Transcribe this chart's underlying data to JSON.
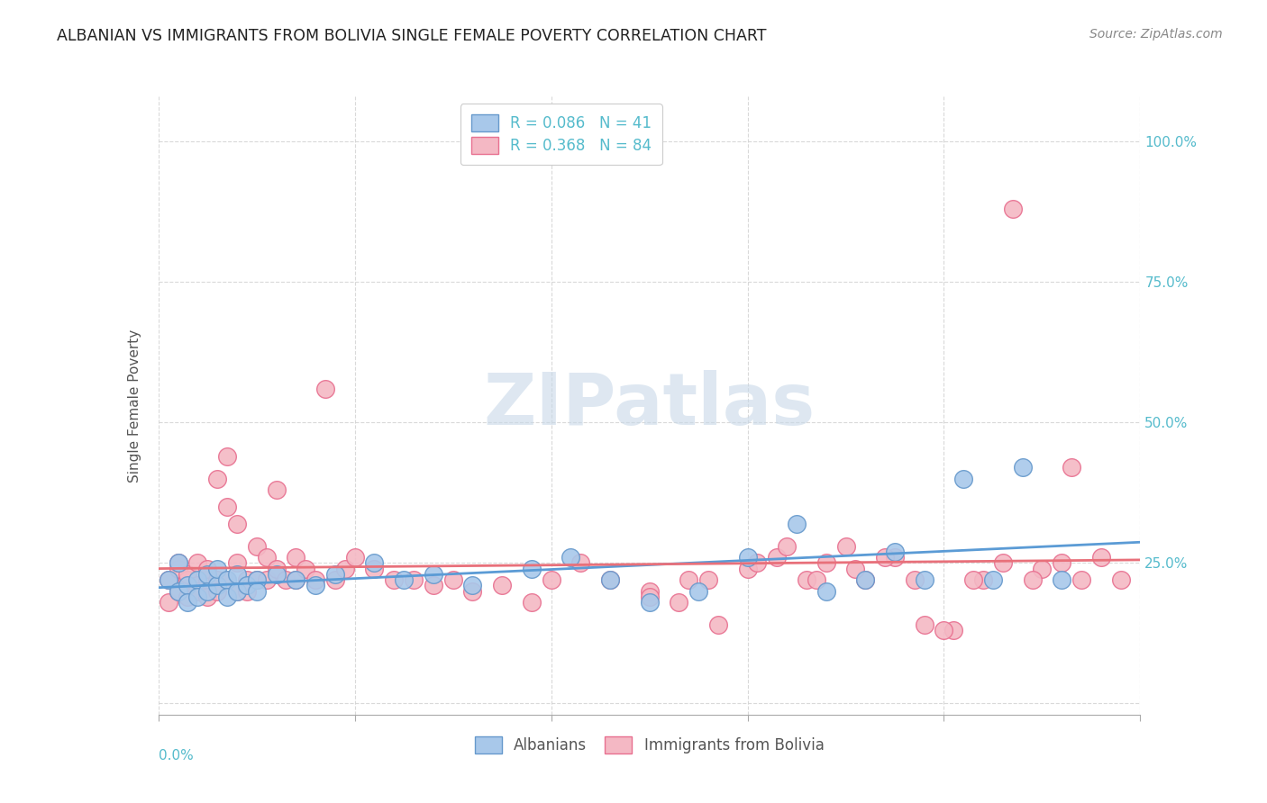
{
  "title": "ALBANIAN VS IMMIGRANTS FROM BOLIVIA SINGLE FEMALE POVERTY CORRELATION CHART",
  "source": "Source: ZipAtlas.com",
  "ylabel": "Single Female Poverty",
  "ytick_values": [
    0.0,
    0.25,
    0.5,
    0.75,
    1.0
  ],
  "ytick_labels": [
    "",
    "25.0%",
    "50.0%",
    "75.0%",
    "100.0%"
  ],
  "xlim": [
    0.0,
    0.1
  ],
  "ylim": [
    -0.02,
    1.08
  ],
  "legend_entries": [
    {
      "label": "R = 0.086   N = 41"
    },
    {
      "label": "R = 0.368   N = 84"
    }
  ],
  "legend_bottom": [
    "Albanians",
    "Immigrants from Bolivia"
  ],
  "albanians_x": [
    0.001,
    0.002,
    0.002,
    0.003,
    0.003,
    0.004,
    0.004,
    0.005,
    0.005,
    0.006,
    0.006,
    0.007,
    0.007,
    0.008,
    0.008,
    0.009,
    0.01,
    0.01,
    0.012,
    0.014,
    0.016,
    0.018,
    0.022,
    0.025,
    0.028,
    0.032,
    0.038,
    0.042,
    0.046,
    0.05,
    0.055,
    0.06,
    0.065,
    0.068,
    0.072,
    0.075,
    0.078,
    0.082,
    0.085,
    0.088,
    0.092
  ],
  "albanians_y": [
    0.22,
    0.2,
    0.25,
    0.21,
    0.18,
    0.22,
    0.19,
    0.23,
    0.2,
    0.21,
    0.24,
    0.22,
    0.19,
    0.23,
    0.2,
    0.21,
    0.22,
    0.2,
    0.23,
    0.22,
    0.21,
    0.23,
    0.25,
    0.22,
    0.23,
    0.21,
    0.24,
    0.26,
    0.22,
    0.18,
    0.2,
    0.26,
    0.32,
    0.2,
    0.22,
    0.27,
    0.22,
    0.4,
    0.22,
    0.42,
    0.22
  ],
  "bolivia_x": [
    0.001,
    0.001,
    0.002,
    0.002,
    0.002,
    0.003,
    0.003,
    0.003,
    0.004,
    0.004,
    0.004,
    0.005,
    0.005,
    0.005,
    0.006,
    0.006,
    0.006,
    0.007,
    0.007,
    0.007,
    0.008,
    0.008,
    0.008,
    0.009,
    0.009,
    0.01,
    0.01,
    0.011,
    0.011,
    0.012,
    0.012,
    0.013,
    0.014,
    0.014,
    0.015,
    0.016,
    0.017,
    0.018,
    0.019,
    0.02,
    0.022,
    0.024,
    0.026,
    0.028,
    0.03,
    0.032,
    0.035,
    0.038,
    0.04,
    0.043,
    0.046,
    0.05,
    0.053,
    0.056,
    0.06,
    0.063,
    0.066,
    0.068,
    0.07,
    0.072,
    0.075,
    0.078,
    0.081,
    0.084,
    0.087,
    0.09,
    0.092,
    0.094,
    0.096,
    0.098,
    0.05,
    0.054,
    0.057,
    0.061,
    0.064,
    0.067,
    0.071,
    0.074,
    0.077,
    0.08,
    0.083,
    0.086,
    0.089,
    0.093
  ],
  "bolivia_y": [
    0.22,
    0.18,
    0.24,
    0.2,
    0.25,
    0.22,
    0.19,
    0.23,
    0.21,
    0.25,
    0.2,
    0.22,
    0.19,
    0.24,
    0.22,
    0.4,
    0.2,
    0.35,
    0.44,
    0.22,
    0.32,
    0.2,
    0.25,
    0.22,
    0.2,
    0.22,
    0.28,
    0.26,
    0.22,
    0.38,
    0.24,
    0.22,
    0.22,
    0.26,
    0.24,
    0.22,
    0.56,
    0.22,
    0.24,
    0.26,
    0.24,
    0.22,
    0.22,
    0.21,
    0.22,
    0.2,
    0.21,
    0.18,
    0.22,
    0.25,
    0.22,
    0.2,
    0.18,
    0.22,
    0.24,
    0.26,
    0.22,
    0.25,
    0.28,
    0.22,
    0.26,
    0.14,
    0.13,
    0.22,
    0.88,
    0.24,
    0.25,
    0.22,
    0.26,
    0.22,
    0.19,
    0.22,
    0.14,
    0.25,
    0.28,
    0.22,
    0.24,
    0.26,
    0.22,
    0.13,
    0.22,
    0.25,
    0.22,
    0.42
  ],
  "albanian_line_color": "#5b9bd5",
  "bolivia_line_color": "#e8707a",
  "scatter_albanian_facecolor": "#a8c8ea",
  "scatter_albanian_edgecolor": "#6699cc",
  "scatter_bolivia_facecolor": "#f4b8c4",
  "scatter_bolivia_edgecolor": "#e87090",
  "grid_color": "#d0d0d0",
  "background_color": "#ffffff",
  "title_fontsize": 12.5,
  "source_fontsize": 10,
  "ylabel_fontsize": 11,
  "tick_fontsize": 11,
  "legend_fontsize": 12,
  "watermark_text": "ZIPatlas",
  "watermark_color": "#c8d8e8",
  "tick_color": "#55bbcc"
}
